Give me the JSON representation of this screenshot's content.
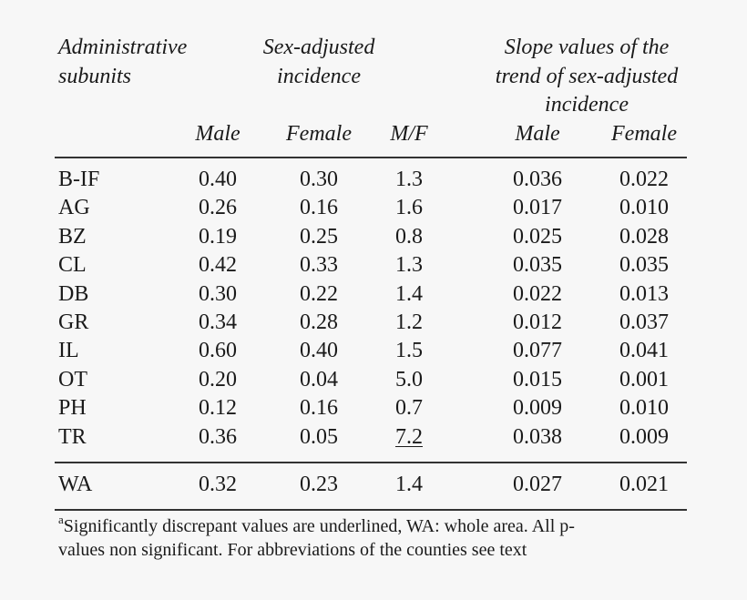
{
  "headers": {
    "admin_line1": "Administrative",
    "admin_line2": "subunits",
    "sex_line1": "Sex-adjusted",
    "sex_line2": "incidence",
    "slope_line1": "Slope values of the",
    "slope_line2": "trend of sex-adjusted",
    "slope_line3": "incidence",
    "male": "Male",
    "female": "Female",
    "mf": "M/F",
    "slope_male": "Male",
    "slope_female": "Female"
  },
  "rows": [
    {
      "unit": "B-IF",
      "male": "0.40",
      "female": "0.30",
      "mf": "1.3",
      "slope_male": "0.036",
      "slope_female": "0.022",
      "mf_underlined": false
    },
    {
      "unit": "AG",
      "male": "0.26",
      "female": "0.16",
      "mf": "1.6",
      "slope_male": "0.017",
      "slope_female": "0.010",
      "mf_underlined": false
    },
    {
      "unit": "BZ",
      "male": "0.19",
      "female": "0.25",
      "mf": "0.8",
      "slope_male": "0.025",
      "slope_female": "0.028",
      "mf_underlined": false
    },
    {
      "unit": "CL",
      "male": "0.42",
      "female": "0.33",
      "mf": "1.3",
      "slope_male": "0.035",
      "slope_female": "0.035",
      "mf_underlined": false
    },
    {
      "unit": "DB",
      "male": "0.30",
      "female": "0.22",
      "mf": "1.4",
      "slope_male": "0.022",
      "slope_female": "0.013",
      "mf_underlined": false
    },
    {
      "unit": "GR",
      "male": "0.34",
      "female": "0.28",
      "mf": "1.2",
      "slope_male": "0.012",
      "slope_female": "0.037",
      "mf_underlined": false
    },
    {
      "unit": "IL",
      "male": "0.60",
      "female": "0.40",
      "mf": "1.5",
      "slope_male": "0.077",
      "slope_female": "0.041",
      "mf_underlined": false
    },
    {
      "unit": "OT",
      "male": "0.20",
      "female": "0.04",
      "mf": "5.0",
      "slope_male": "0.015",
      "slope_female": "0.001",
      "mf_underlined": false
    },
    {
      "unit": "PH",
      "male": "0.12",
      "female": "0.16",
      "mf": "0.7",
      "slope_male": "0.009",
      "slope_female": "0.010",
      "mf_underlined": false
    },
    {
      "unit": "TR",
      "male": "0.36",
      "female": "0.05",
      "mf": "7.2",
      "slope_male": "0.038",
      "slope_female": "0.009",
      "mf_underlined": true
    }
  ],
  "total": {
    "unit": "WA",
    "male": "0.32",
    "female": "0.23",
    "mf": "1.4",
    "slope_male": "0.027",
    "slope_female": "0.021"
  },
  "footnote": {
    "marker": "a",
    "line1": "Significantly discrepant values are underlined, WA: whole area. All p-",
    "line2": "values non significant. For abbreviations of the counties see text"
  }
}
